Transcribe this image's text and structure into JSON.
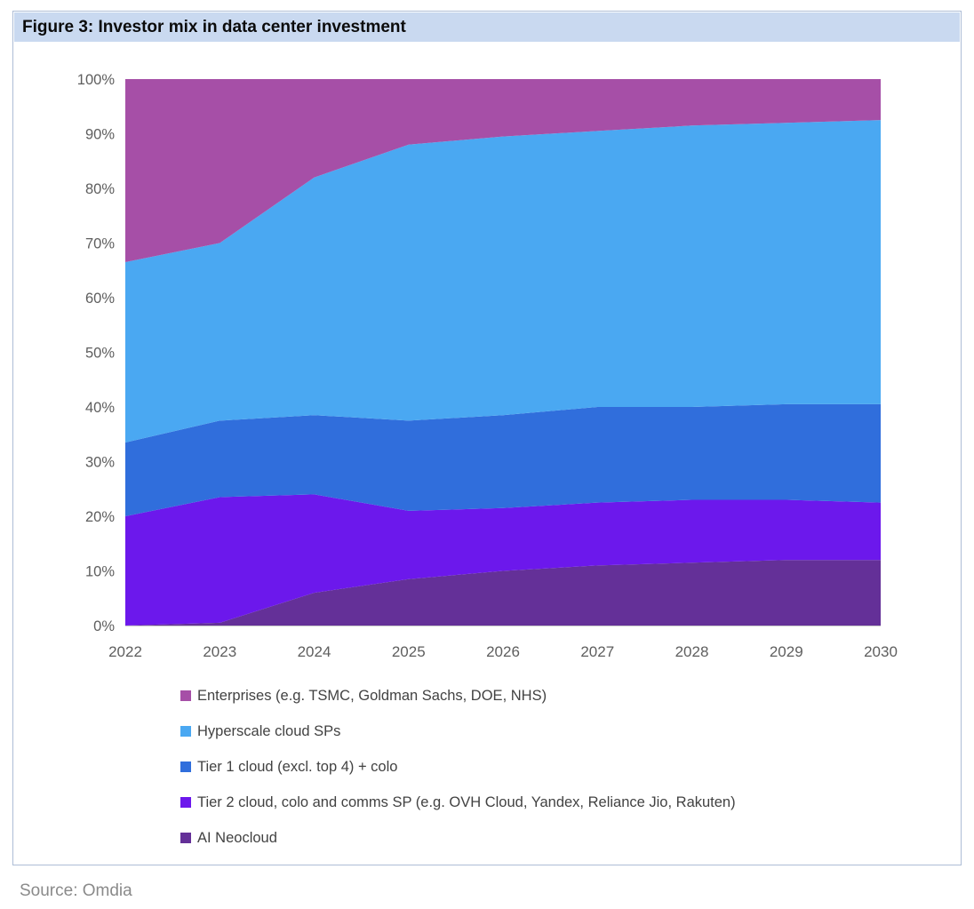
{
  "figure": {
    "title": "Figure 3: Investor mix in data center investment",
    "source": "Source: Omdia"
  },
  "colors": {
    "title_highlight": "#c9d9f0",
    "container_border": "#adbdd6",
    "axis_text": "#5e5e5e",
    "legend_text": "#424242",
    "source_text": "#8a8a8a",
    "axis_line": "#c9c9c9"
  },
  "chart_data": {
    "type": "area",
    "stacked": true,
    "unit": "percent",
    "title": "Investor mix in data center investment",
    "xlabel": "",
    "ylabel": "",
    "ylim": [
      0,
      100
    ],
    "grid": false,
    "legend_position": "bottom-left",
    "categories": [
      "2022",
      "2023",
      "2024",
      "2025",
      "2026",
      "2027",
      "2028",
      "2029",
      "2030"
    ],
    "y_ticks": [
      "0%",
      "10%",
      "20%",
      "30%",
      "40%",
      "50%",
      "60%",
      "70%",
      "80%",
      "90%",
      "100%"
    ],
    "series": [
      {
        "id": "enterprises",
        "name": "Enterprises (e.g. TSMC, Goldman Sachs, DOE, NHS)",
        "color": "#a64fa7",
        "values": [
          33.5,
          30,
          18,
          12,
          10.5,
          9.5,
          8.5,
          8,
          7.5
        ]
      },
      {
        "id": "hyperscale",
        "name": "Hyperscale cloud SPs",
        "color": "#4aa8f2",
        "values": [
          33,
          32.5,
          43.5,
          50.5,
          51,
          50.5,
          51.5,
          51.5,
          52
        ]
      },
      {
        "id": "tier1",
        "name": "Tier 1 cloud (excl. top 4) + colo",
        "color": "#306edc",
        "values": [
          13.5,
          14,
          14.5,
          16.5,
          17,
          17.5,
          17,
          17.5,
          18
        ]
      },
      {
        "id": "tier2",
        "name": "Tier 2 cloud, colo and comms SP (e.g. OVH Cloud, Yandex, Reliance Jio, Rakuten)",
        "color": "#6c18ec",
        "values": [
          20,
          23,
          18,
          12.5,
          11.5,
          11.5,
          11.5,
          11,
          10.5
        ]
      },
      {
        "id": "ai-neocloud",
        "name": "AI Neocloud",
        "color": "#643098",
        "values": [
          0,
          0.5,
          6,
          8.5,
          10,
          11,
          11.5,
          12,
          12
        ]
      }
    ]
  }
}
